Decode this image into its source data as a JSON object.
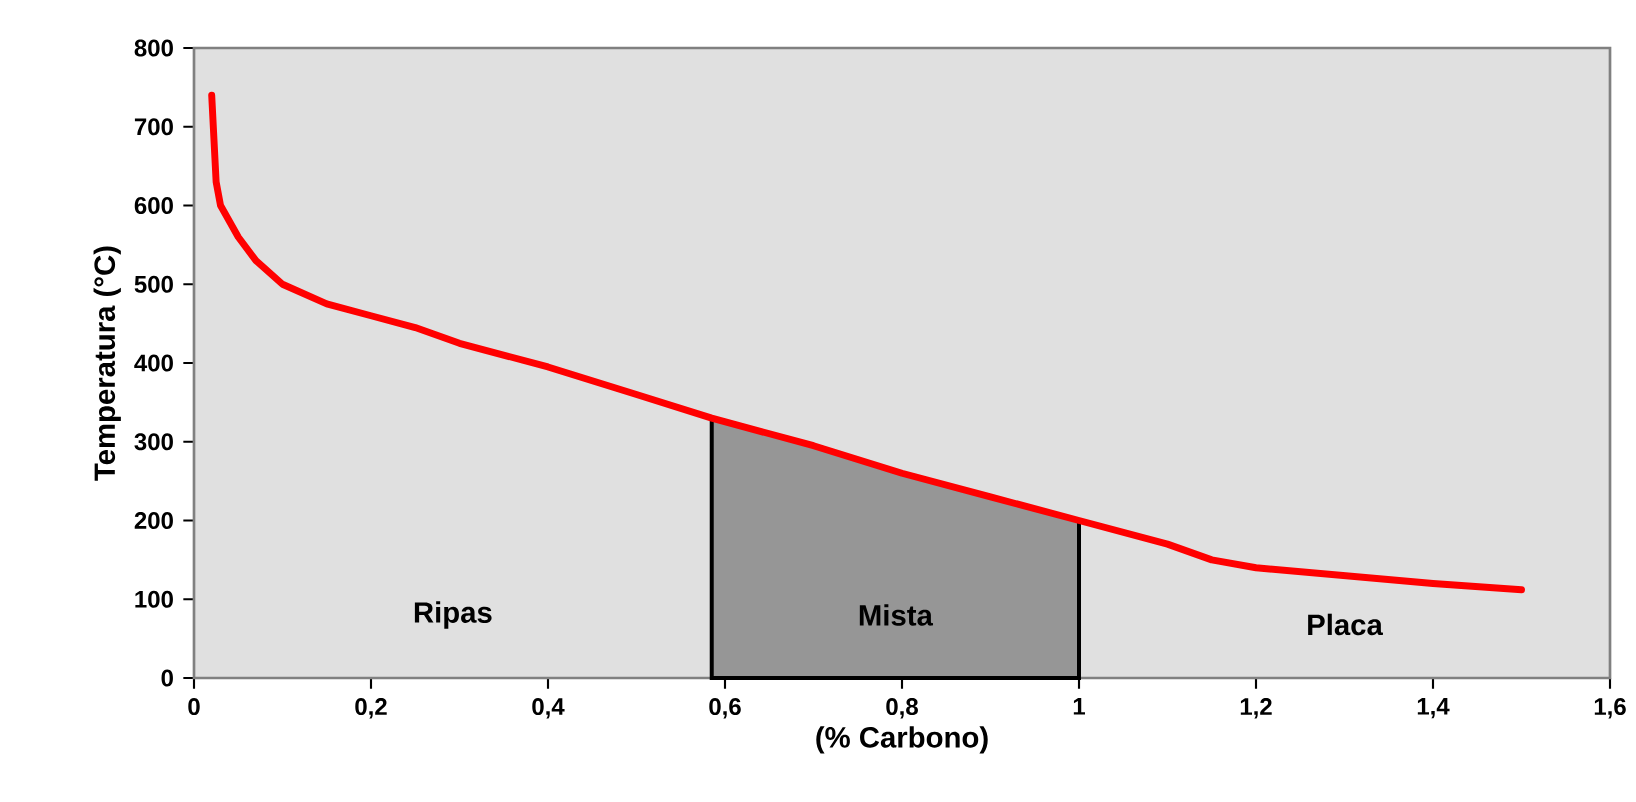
{
  "chart_data": {
    "type": "line",
    "xlabel": "(% Carbono)",
    "ylabel": "Temperatura (°C)",
    "x": [
      0.02,
      0.025,
      0.03,
      0.04,
      0.05,
      0.07,
      0.1,
      0.15,
      0.2,
      0.25,
      0.3,
      0.4,
      0.5,
      0.585,
      0.7,
      0.8,
      0.9,
      1.0,
      1.1,
      1.15,
      1.2,
      1.3,
      1.4,
      1.5
    ],
    "series": [
      {
        "type": "area",
        "color": "#969696",
        "x": [
          0.585,
          0.7,
          0.8,
          0.9,
          1.0
        ],
        "values": [
          330,
          295,
          260,
          230,
          200
        ]
      },
      {
        "color": "#ff0000",
        "values": [
          740,
          630,
          600,
          580,
          560,
          530,
          500,
          475,
          460,
          445,
          425,
          395,
          360,
          330,
          295,
          260,
          230,
          200,
          170,
          150,
          140,
          130,
          120,
          112
        ]
      }
    ],
    "xlim": [
      0,
      1.6
    ],
    "ylim": [
      0,
      800
    ],
    "xticks": [
      0,
      {
        "value": 0.2,
        "label": "0,2"
      },
      {
        "value": 0.4,
        "label": "0,4"
      },
      {
        "value": 0.6,
        "label": "0,6"
      },
      {
        "value": 0.8,
        "label": "0,8"
      },
      1,
      {
        "value": 1.2,
        "label": "1,2"
      },
      {
        "value": 1.4,
        "label": "1,4"
      },
      {
        "value": 1.6,
        "label": "1,6"
      }
    ],
    "yticks": [
      0,
      100,
      200,
      300,
      400,
      500,
      600,
      700,
      800
    ],
    "annotations": [
      "Ripas",
      "Mista",
      "Placa"
    ],
    "grid": false,
    "marker": "none",
    "line_style": "solid"
  }
}
